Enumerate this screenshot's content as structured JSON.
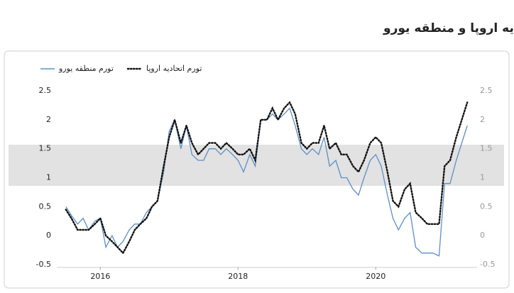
{
  "chart_data": {
    "type": "line",
    "title": "مقایسه نرخ تورم اتحادیه اروپا و منطقه یورو",
    "x": [
      2015.5,
      2015.58,
      2015.67,
      2015.75,
      2015.83,
      2015.92,
      2016,
      2016.08,
      2016.17,
      2016.25,
      2016.33,
      2016.42,
      2016.5,
      2016.58,
      2016.67,
      2016.75,
      2016.83,
      2016.92,
      2017,
      2017.08,
      2017.17,
      2017.25,
      2017.33,
      2017.42,
      2017.5,
      2017.58,
      2017.67,
      2017.75,
      2017.83,
      2017.92,
      2018,
      2018.08,
      2018.17,
      2018.25,
      2018.33,
      2018.42,
      2018.5,
      2018.58,
      2018.67,
      2018.75,
      2018.83,
      2018.92,
      2019,
      2019.08,
      2019.17,
      2019.25,
      2019.33,
      2019.42,
      2019.5,
      2019.58,
      2019.67,
      2019.75,
      2019.83,
      2019.92,
      2020,
      2020.08,
      2020.17,
      2020.25,
      2020.33,
      2020.42,
      2020.5,
      2020.58,
      2020.67,
      2020.75,
      2020.83,
      2020.92,
      2021,
      2021.08,
      2021.17,
      2021.25,
      2021.33
    ],
    "series": [
      {
        "name": "تورم منطقه یورو",
        "color": "#5b8fc7",
        "dash": false,
        "values": [
          0.5,
          0.35,
          0.2,
          0.3,
          0.1,
          0.25,
          0.3,
          -0.2,
          0.0,
          -0.2,
          -0.1,
          0.1,
          0.2,
          0.2,
          0.4,
          0.5,
          0.6,
          1.1,
          1.8,
          2.0,
          1.5,
          1.9,
          1.4,
          1.3,
          1.3,
          1.5,
          1.5,
          1.4,
          1.5,
          1.4,
          1.3,
          1.1,
          1.4,
          1.2,
          2.0,
          2.0,
          2.1,
          2.0,
          2.1,
          2.2,
          1.9,
          1.5,
          1.4,
          1.5,
          1.4,
          1.7,
          1.2,
          1.3,
          1.0,
          1.0,
          0.8,
          0.7,
          1.0,
          1.3,
          1.4,
          1.2,
          0.7,
          0.3,
          0.1,
          0.3,
          0.4,
          -0.2,
          -0.3,
          -0.3,
          -0.3,
          -0.35,
          0.9,
          0.9,
          1.3,
          1.6,
          1.9
        ]
      },
      {
        "name": "تورم اتحادیه اروپا",
        "color": "#111111",
        "dash": true,
        "axis": "y2",
        "values": [
          0.45,
          0.3,
          0.1,
          0.1,
          0.1,
          0.2,
          0.3,
          0.0,
          -0.1,
          -0.2,
          -0.3,
          -0.1,
          0.1,
          0.2,
          0.3,
          0.5,
          0.6,
          1.2,
          1.7,
          2.0,
          1.6,
          1.9,
          1.6,
          1.4,
          1.5,
          1.6,
          1.6,
          1.5,
          1.6,
          1.5,
          1.4,
          1.4,
          1.5,
          1.3,
          2.0,
          2.0,
          2.2,
          2.0,
          2.2,
          2.3,
          2.1,
          1.6,
          1.5,
          1.6,
          1.6,
          1.9,
          1.5,
          1.6,
          1.4,
          1.4,
          1.2,
          1.1,
          1.3,
          1.6,
          1.7,
          1.6,
          1.1,
          0.6,
          0.5,
          0.8,
          0.9,
          0.4,
          0.3,
          0.2,
          0.2,
          0.2,
          1.2,
          1.3,
          1.7,
          2.0,
          2.3
        ]
      }
    ],
    "xlim": [
      2015.45,
      2021.4
    ],
    "xticks": [
      2016,
      2018,
      2020
    ],
    "ylim": [
      -0.5,
      2.5
    ],
    "yticks": [
      -0.5,
      0,
      0.5,
      1,
      1.5,
      2,
      2.5
    ],
    "y2lim": [
      -0.5,
      2.5
    ],
    "y2ticks": [
      -0.5,
      0,
      0.5,
      1,
      1.5,
      2,
      2.5
    ],
    "grid": false
  }
}
